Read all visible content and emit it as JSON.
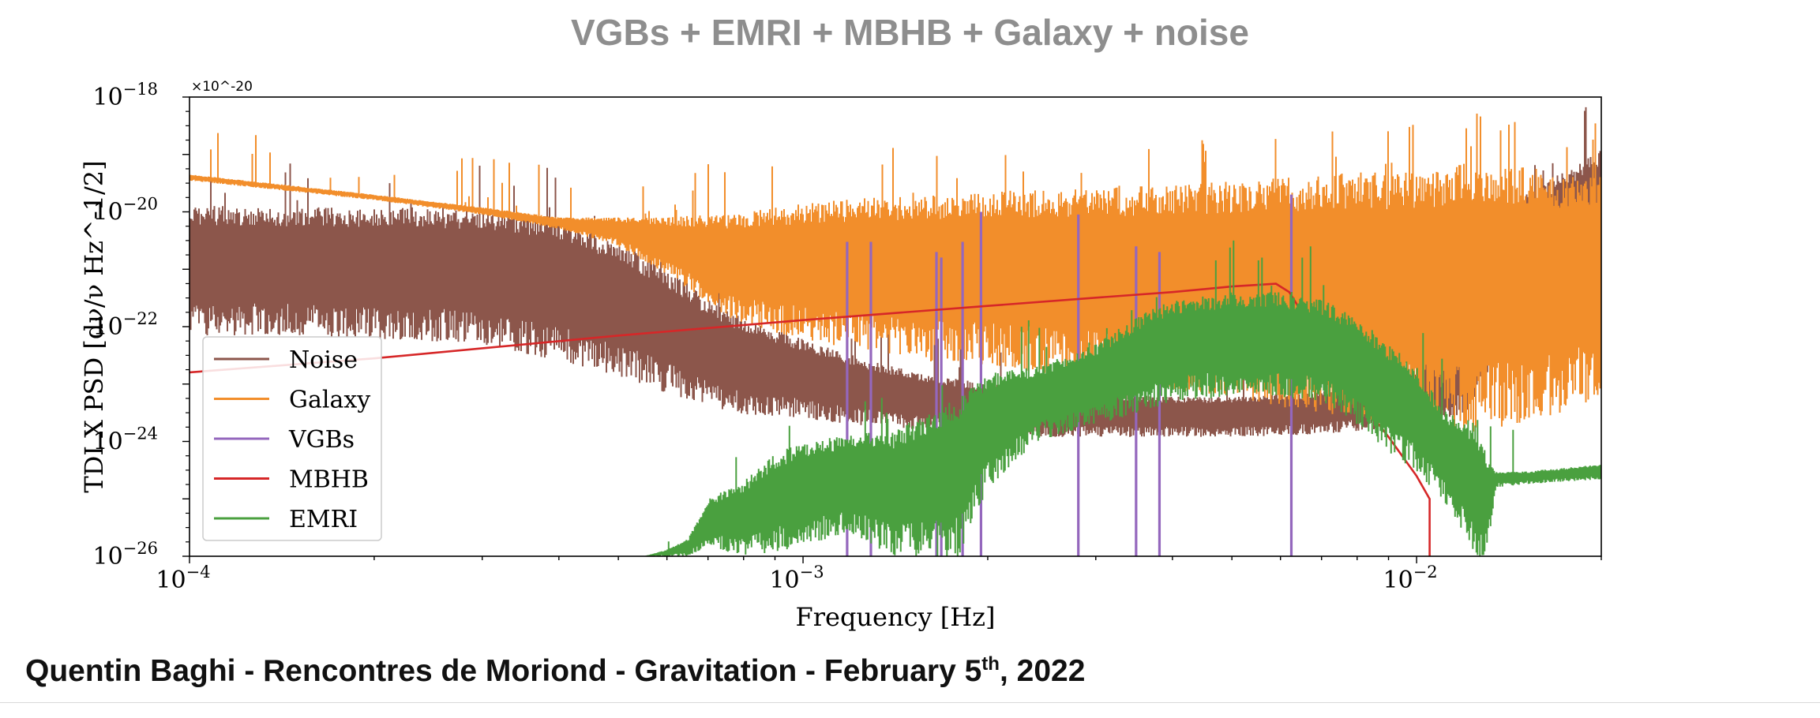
{
  "slide": {
    "title": "VGBs + EMRI  + MBHB  + Galaxy  + noise",
    "footer": {
      "prefix": "Quentin Baghi - Rencontres de Moriond - Gravitation - February 5",
      "sup": "th",
      "suffix": ", 2022"
    }
  },
  "chart_data": {
    "type": "line",
    "xscale": "log",
    "yscale": "log",
    "xlim": [
      0.0001,
      0.02
    ],
    "ylim": [
      1e-26,
      1e-18
    ],
    "xlabel": "Frequency [Hz]",
    "ylabel": "TDI X PSD [dν/ν Hz^-1/2]",
    "offset_text": "×10^-20",
    "x_ticks": [
      {
        "base": "10",
        "exp": "−4",
        "value": 0.0001
      },
      {
        "base": "10",
        "exp": "−3",
        "value": 0.001
      },
      {
        "base": "10",
        "exp": "−2",
        "value": 0.01
      }
    ],
    "y_ticks": [
      {
        "base": "10",
        "exp": "−26",
        "value": 1e-26
      },
      {
        "base": "10",
        "exp": "−24",
        "value": 1e-24
      },
      {
        "base": "10",
        "exp": "−22",
        "value": 1e-22
      },
      {
        "base": "10",
        "exp": "−20",
        "value": 1e-20
      },
      {
        "base": "10",
        "exp": "−18",
        "value": 1e-18
      }
    ],
    "legend_position": "lower-left",
    "series": [
      {
        "name": "Noise",
        "color": "#8c564b",
        "style": "noisy-band",
        "x": [
          0.0001,
          0.00015,
          0.0002,
          0.0003,
          0.0004,
          0.0005,
          0.0006,
          0.0007,
          0.0008,
          0.001,
          0.0013,
          0.0016,
          0.002,
          0.0026,
          0.003,
          0.004,
          0.005,
          0.0065,
          0.008,
          0.01,
          0.012,
          0.015,
          0.02
        ],
        "y_top": [
          1.3e-20,
          1.2e-20,
          1.2e-20,
          1.1e-20,
          8e-21,
          3e-21,
          1e-21,
          3e-22,
          1.4e-22,
          6e-23,
          2.5e-23,
          1.5e-23,
          1e-23,
          8e-24,
          7e-24,
          6e-24,
          6e-24,
          7e-24,
          1e-23,
          2e-23,
          1e-22,
          2e-20,
          1.2e-19
        ],
        "y_bot": [
          7e-23,
          7e-23,
          6e-23,
          5e-23,
          2.5e-23,
          1.4e-23,
          7e-24,
          4e-24,
          3e-24,
          2.5e-24,
          1.8e-24,
          1.5e-24,
          1.3e-24,
          1.2e-24,
          1.2e-24,
          1.2e-24,
          1.2e-24,
          1.3e-24,
          1.5e-24,
          2e-24,
          3e-24,
          1.5e-22,
          2e-21
        ]
      },
      {
        "name": "Galaxy",
        "color": "#f28e2b",
        "style": "noisy-band",
        "x": [
          0.0001,
          0.0002,
          0.0003,
          0.0004,
          0.0005,
          0.0006,
          0.0007,
          0.0008,
          0.001,
          0.0013,
          0.0016,
          0.002,
          0.003,
          0.004,
          0.005,
          0.006,
          0.008,
          0.01,
          0.011,
          0.012,
          0.013,
          0.015,
          0.017,
          0.02
        ],
        "y_top": [
          4.5e-20,
          2e-20,
          1.2e-20,
          8e-21,
          8e-21,
          8e-21,
          9e-21,
          1e-20,
          1.4e-20,
          1.8e-20,
          2e-20,
          2.2e-20,
          2.6e-20,
          3e-20,
          3.5e-20,
          4e-20,
          5e-20,
          5e-20,
          6e-20,
          7e-20,
          7e-20,
          6e-20,
          5e-20,
          5e-20
        ],
        "y_bot": [
          3.5e-20,
          1.6e-20,
          9e-21,
          5e-21,
          2.5e-21,
          8e-22,
          2.5e-22,
          1e-22,
          6e-23,
          3.5e-23,
          2.5e-23,
          2e-23,
          1.2e-23,
          8e-24,
          6e-24,
          4e-24,
          2.5e-24,
          1.8e-24,
          1.5e-24,
          1.4e-24,
          1.5e-24,
          2e-24,
          3e-24,
          6e-24
        ]
      },
      {
        "name": "VGBs",
        "color": "#9467bd",
        "style": "spikes",
        "spikes": [
          {
            "f": 0.00118,
            "peak": 3e-21
          },
          {
            "f": 0.00129,
            "peak": 3e-21
          },
          {
            "f": 0.00165,
            "peak": 2e-21
          },
          {
            "f": 0.00168,
            "peak": 1.6e-21
          },
          {
            "f": 0.00182,
            "peak": 3e-21
          },
          {
            "f": 0.00195,
            "peak": 1e-20
          },
          {
            "f": 0.00281,
            "peak": 9e-21
          },
          {
            "f": 0.00349,
            "peak": 2.5e-21
          },
          {
            "f": 0.00381,
            "peak": 2e-21
          },
          {
            "f": 0.00625,
            "peak": 2e-20
          }
        ]
      },
      {
        "name": "MBHB",
        "color": "#d62728",
        "style": "line",
        "x": [
          0.0001,
          0.0002,
          0.0005,
          0.001,
          0.002,
          0.003,
          0.004,
          0.005,
          0.0059,
          0.0062,
          0.007,
          0.008,
          0.009,
          0.01,
          0.0105,
          0.0105
        ],
        "y": [
          1.6e-23,
          2.8e-23,
          7e-23,
          1.3e-22,
          2.3e-22,
          3.2e-22,
          4e-22,
          5e-22,
          5.6e-22,
          4e-22,
          5e-23,
          6e-24,
          1.2e-24,
          2.5e-25,
          1e-25,
          1e-26
        ]
      },
      {
        "name": "EMRI",
        "color": "#4aa03f",
        "style": "noisy-band",
        "x": [
          0.00055,
          0.0006,
          0.00065,
          0.0007,
          0.0008,
          0.0009,
          0.001,
          0.0012,
          0.0014,
          0.0016,
          0.0018,
          0.002,
          0.0024,
          0.003,
          0.0035,
          0.004,
          0.005,
          0.006,
          0.007,
          0.008,
          0.009,
          0.01,
          0.011,
          0.0125,
          0.013,
          0.0135,
          0.015,
          0.02
        ],
        "y_top": [
          1e-26,
          1.3e-26,
          2e-26,
          1e-25,
          2e-25,
          6e-25,
          1e-24,
          1.3e-24,
          1.6e-24,
          3e-24,
          6e-24,
          1.6e-23,
          2e-23,
          5e-23,
          1.5e-22,
          3e-22,
          4e-22,
          4e-22,
          3e-22,
          1.5e-22,
          5e-23,
          2e-23,
          4e-24,
          2e-24,
          6e-25,
          3e-25,
          3e-25,
          4e-25
        ],
        "y_bot": [
          1e-26,
          1e-26,
          1e-26,
          1.5e-26,
          1e-26,
          1.2e-26,
          1.5e-26,
          2.5e-26,
          1e-26,
          1e-26,
          1e-26,
          1.5e-25,
          1e-24,
          2e-24,
          3e-24,
          5e-24,
          6e-24,
          6e-24,
          5e-24,
          2e-24,
          6e-25,
          3e-25,
          1e-25,
          1e-26,
          1e-26,
          1.6e-25,
          1.8e-25,
          2.2e-25
        ]
      }
    ]
  }
}
